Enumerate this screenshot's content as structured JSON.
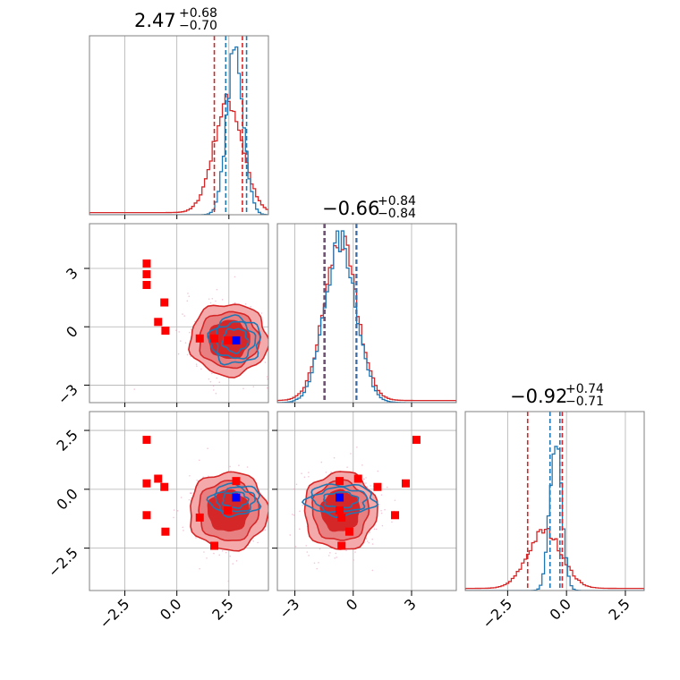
{
  "chart_data": {
    "type": "corner",
    "parameters": [
      {
        "title": {
          "main": "2.47",
          "upper": "+0.68",
          "lower": "−0.70"
        },
        "range": [
          -4.2,
          4.4
        ],
        "ticks": [
          -2.5,
          0.0,
          2.5
        ],
        "tick_labels": [
          "−2.5",
          "0.0",
          "2.5"
        ],
        "quantiles": {
          "red": [
            1.8,
            3.15
          ],
          "blue": [
            2.35,
            3.35
          ]
        },
        "hist": {
          "red": {
            "center": 2.47,
            "sd": 0.7,
            "peak": 0.62
          },
          "blue": {
            "center": 2.8,
            "sd": 0.4,
            "peak": 0.92
          }
        }
      },
      {
        "title": {
          "main": "−0.66",
          "upper": "+0.84",
          "lower": "−0.84"
        },
        "range": [
          -3.9,
          5.3
        ],
        "ticks": [
          -3,
          0,
          3
        ],
        "tick_labels": [
          "−3",
          "0",
          "3"
        ],
        "quantiles": {
          "red": [
            -1.5,
            0.18
          ],
          "blue": [
            -1.45,
            0.15
          ]
        },
        "hist": {
          "red": {
            "center": -0.66,
            "sd": 0.84,
            "peak": 0.88
          },
          "blue": {
            "center": -0.66,
            "sd": 0.8,
            "peak": 0.9
          }
        }
      },
      {
        "title": {
          "main": "−0.92",
          "upper": "+0.74",
          "lower": "−0.71"
        },
        "range": [
          -4.3,
          3.3
        ],
        "ticks": [
          -2.5,
          0.0,
          2.5
        ],
        "tick_labels": [
          "−2.5",
          "0.0",
          "2.5"
        ],
        "quantiles": {
          "red": [
            -1.65,
            -0.18
          ],
          "blue": [
            -0.7,
            -0.28
          ]
        },
        "hist": {
          "red": {
            "center": -0.92,
            "sd": 0.72,
            "peak": 0.32
          },
          "blue": {
            "center": -0.45,
            "sd": 0.25,
            "peak": 0.88
          }
        }
      }
    ],
    "contours": [
      {
        "row": 1,
        "col": 0,
        "red_center": [
          2.5,
          -0.66
        ],
        "red_sd": [
          0.85,
          0.84
        ],
        "blue_center": [
          2.8,
          -0.7
        ],
        "blue_sd": [
          0.55,
          0.55
        ]
      },
      {
        "row": 2,
        "col": 0,
        "red_center": [
          2.47,
          -0.92
        ],
        "red_sd": [
          0.85,
          0.75
        ],
        "blue_center": [
          2.8,
          -0.45
        ],
        "blue_sd": [
          0.55,
          0.3
        ]
      },
      {
        "row": 2,
        "col": 1,
        "red_center": [
          -0.66,
          -0.92
        ],
        "red_sd": [
          0.85,
          0.75
        ],
        "blue_center": [
          -0.66,
          -0.45
        ],
        "blue_sd": [
          0.8,
          0.3
        ]
      }
    ],
    "markers": {
      "red": [
        [
          -1.45,
          3.25,
          2.1
        ],
        [
          -1.45,
          2.7,
          0.25
        ],
        [
          -1.45,
          2.15,
          -1.1
        ],
        [
          -0.9,
          0.25,
          0.45
        ],
        [
          -0.6,
          1.25,
          0.1
        ],
        [
          -0.55,
          -0.2,
          -1.8
        ],
        [
          1.1,
          -0.6,
          -1.2
        ],
        [
          1.8,
          -0.6,
          -2.4
        ],
        [
          2.45,
          -0.7,
          -0.9
        ],
        [
          2.85,
          -0.7,
          0.35
        ]
      ],
      "blue": [
        [
          2.85,
          -0.7,
          -0.35
        ]
      ]
    },
    "colors": {
      "red": "#d62728",
      "blue": "#1f77b4",
      "marker_blue": "#0000ff",
      "marker_red": "#ff0000"
    },
    "grid": true
  }
}
